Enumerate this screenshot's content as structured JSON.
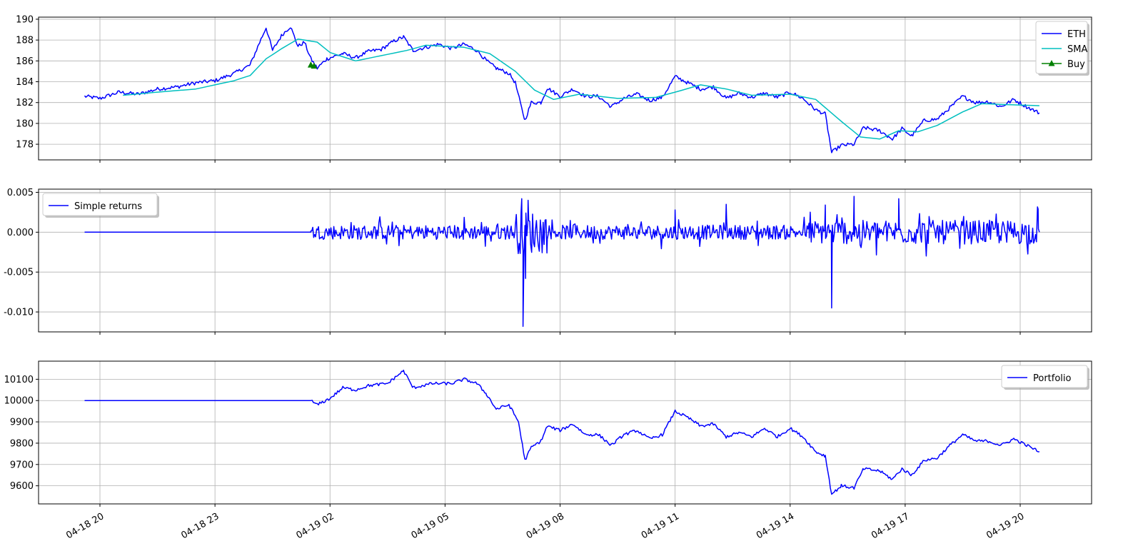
{
  "chart_data": {
    "x_ticks": [
      "04-18 20",
      "04-18 23",
      "04-19 02",
      "04-19 05",
      "04-19 08",
      "04-19 11",
      "04-19 14",
      "04-19 17",
      "04-19 20"
    ],
    "x_range": [
      "04-18 19:36",
      "04-19 20:30"
    ],
    "panels": [
      {
        "type": "line",
        "ylim": [
          176.5,
          190.2
        ],
        "y_ticks": [
          "178",
          "180",
          "182",
          "184",
          "186",
          "188",
          "190"
        ],
        "grid": true,
        "legend": {
          "placement": "top-right",
          "entries": [
            "ETH",
            "SMA",
            "Buy"
          ]
        },
        "series": [
          {
            "name": "ETH",
            "color": "#0000ff",
            "points": [
              [
                "04-18 19:36",
                182.6
              ],
              [
                "04-18 20:00",
                182.4
              ],
              [
                "04-18 20:30",
                183.0
              ],
              [
                "04-18 21:00",
                182.8
              ],
              [
                "04-18 21:30",
                183.3
              ],
              [
                "04-18 22:00",
                183.5
              ],
              [
                "04-18 22:30",
                183.9
              ],
              [
                "04-18 23:00",
                184.1
              ],
              [
                "04-18 23:30",
                184.8
              ],
              [
                "04-18 23:55",
                185.6
              ],
              [
                "04-19 00:10",
                187.8
              ],
              [
                "04-19 00:20",
                189.2
              ],
              [
                "04-19 00:30",
                187.0
              ],
              [
                "04-19 00:45",
                188.5
              ],
              [
                "04-19 00:58",
                189.3
              ],
              [
                "04-19 01:10",
                187.4
              ],
              [
                "04-19 01:20",
                187.8
              ],
              [
                "04-19 01:30",
                186.2
              ],
              [
                "04-19 01:40",
                185.3
              ],
              [
                "04-19 01:55",
                186.2
              ],
              [
                "04-19 02:20",
                186.7
              ],
              [
                "04-19 02:40",
                186.3
              ],
              [
                "04-19 03:00",
                186.9
              ],
              [
                "04-19 03:20",
                187.1
              ],
              [
                "04-19 03:40",
                187.9
              ],
              [
                "04-19 03:55",
                188.3
              ],
              [
                "04-19 04:10",
                187.0
              ],
              [
                "04-19 04:30",
                187.3
              ],
              [
                "04-19 04:50",
                187.6
              ],
              [
                "04-19 05:10",
                187.2
              ],
              [
                "04-19 05:30",
                187.6
              ],
              [
                "04-19 05:50",
                187.0
              ],
              [
                "04-19 06:05",
                186.0
              ],
              [
                "04-19 06:20",
                185.3
              ],
              [
                "04-19 06:40",
                184.8
              ],
              [
                "04-19 06:50",
                183.9
              ],
              [
                "04-19 07:00",
                181.4
              ],
              [
                "04-19 07:05",
                180.3
              ],
              [
                "04-19 07:15",
                182.0
              ],
              [
                "04-19 07:30",
                182.0
              ],
              [
                "04-19 07:40",
                183.4
              ],
              [
                "04-19 08:00",
                182.6
              ],
              [
                "04-19 08:20",
                183.3
              ],
              [
                "04-19 08:40",
                182.6
              ],
              [
                "04-19 09:00",
                182.6
              ],
              [
                "04-19 09:20",
                181.6
              ],
              [
                "04-19 09:40",
                182.4
              ],
              [
                "04-19 10:00",
                182.8
              ],
              [
                "04-19 10:20",
                182.2
              ],
              [
                "04-19 10:40",
                182.5
              ],
              [
                "04-19 11:00",
                184.5
              ],
              [
                "04-19 11:20",
                183.9
              ],
              [
                "04-19 11:40",
                183.3
              ],
              [
                "04-19 12:00",
                183.5
              ],
              [
                "04-19 12:20",
                182.4
              ],
              [
                "04-19 12:40",
                182.9
              ],
              [
                "04-19 13:00",
                182.5
              ],
              [
                "04-19 13:20",
                182.9
              ],
              [
                "04-19 13:40",
                182.5
              ],
              [
                "04-19 14:00",
                183.0
              ],
              [
                "04-19 14:20",
                182.4
              ],
              [
                "04-19 14:40",
                181.3
              ],
              [
                "04-19 14:55",
                180.9
              ],
              [
                "04-19 15:05",
                177.2
              ],
              [
                "04-19 15:20",
                177.9
              ],
              [
                "04-19 15:40",
                178.0
              ],
              [
                "04-19 15:55",
                179.6
              ],
              [
                "04-19 16:20",
                179.3
              ],
              [
                "04-19 16:40",
                178.5
              ],
              [
                "04-19 16:55",
                179.5
              ],
              [
                "04-19 17:10",
                178.8
              ],
              [
                "04-19 17:30",
                180.3
              ],
              [
                "04-19 17:50",
                180.4
              ],
              [
                "04-19 18:10",
                181.5
              ],
              [
                "04-19 18:30",
                182.6
              ],
              [
                "04-19 18:50",
                182.0
              ],
              [
                "04-19 19:10",
                182.1
              ],
              [
                "04-19 19:30",
                181.6
              ],
              [
                "04-19 19:50",
                182.3
              ],
              [
                "04-19 20:10",
                181.6
              ],
              [
                "04-19 20:30",
                181.0
              ]
            ]
          },
          {
            "name": "SMA",
            "color": "#00bfbf",
            "points": [
              [
                "04-18 20:36",
                182.7
              ],
              [
                "04-18 21:30",
                183.0
              ],
              [
                "04-18 22:30",
                183.3
              ],
              [
                "04-18 23:30",
                184.1
              ],
              [
                "04-18 23:55",
                184.6
              ],
              [
                "04-19 00:20",
                186.2
              ],
              [
                "04-19 00:45",
                187.2
              ],
              [
                "04-19 01:10",
                188.1
              ],
              [
                "04-19 01:40",
                187.8
              ],
              [
                "04-19 02:00",
                186.8
              ],
              [
                "04-19 02:40",
                186.0
              ],
              [
                "04-19 03:20",
                186.5
              ],
              [
                "04-19 04:00",
                187.0
              ],
              [
                "04-19 04:30",
                187.5
              ],
              [
                "04-19 05:30",
                187.3
              ],
              [
                "04-19 06:10",
                186.7
              ],
              [
                "04-19 06:50",
                185.0
              ],
              [
                "04-19 07:20",
                183.2
              ],
              [
                "04-19 07:50",
                182.3
              ],
              [
                "04-19 08:30",
                182.8
              ],
              [
                "04-19 09:30",
                182.4
              ],
              [
                "04-19 10:30",
                182.5
              ],
              [
                "04-19 11:00",
                183.0
              ],
              [
                "04-19 11:40",
                183.7
              ],
              [
                "04-19 12:20",
                183.3
              ],
              [
                "04-19 13:00",
                182.7
              ],
              [
                "04-19 14:00",
                182.8
              ],
              [
                "04-19 14:40",
                182.3
              ],
              [
                "04-19 15:20",
                180.2
              ],
              [
                "04-19 15:50",
                178.7
              ],
              [
                "04-19 16:20",
                178.5
              ],
              [
                "04-19 16:50",
                179.3
              ],
              [
                "04-19 17:20",
                179.2
              ],
              [
                "04-19 17:50",
                179.8
              ],
              [
                "04-19 18:30",
                181.1
              ],
              [
                "04-19 19:00",
                181.9
              ],
              [
                "04-19 19:40",
                181.8
              ],
              [
                "04-19 20:30",
                181.7
              ]
            ]
          }
        ],
        "markers": [
          {
            "name": "Buy",
            "color": "#008000",
            "shape": "triangle-up",
            "points": [
              [
                "04-19 01:30",
                185.6
              ],
              [
                "04-19 01:35",
                185.5
              ]
            ]
          }
        ]
      },
      {
        "type": "line",
        "ylim": [
          -0.0125,
          0.0054
        ],
        "y_ticks": [
          "-0.010",
          "-0.005",
          "0.000",
          "0.005"
        ],
        "grid": true,
        "legend": {
          "placement": "top-left",
          "entries": [
            "Simple returns"
          ]
        },
        "series": [
          {
            "name": "Simple returns",
            "color": "#0000ff",
            "flat_until": "04-19 01:30",
            "amplitude_windows": [
              [
                "04-19 01:30",
                "04-19 06:50",
                0.0015
              ],
              [
                "04-19 06:50",
                "04-19 07:40",
                0.0045
              ],
              [
                "04-19 07:40",
                "04-19 14:30",
                0.0015
              ],
              [
                "04-19 14:30",
                "04-19 20:30",
                0.0025
              ]
            ],
            "spikes": [
              [
                "04-19 07:02",
                -0.0118
              ],
              [
                "04-19 07:06",
                -0.0058
              ],
              [
                "04-19 07:00",
                0.0042
              ],
              [
                "04-19 07:10",
                0.004
              ],
              [
                "04-19 15:05",
                -0.0095
              ],
              [
                "04-19 15:40",
                0.0045
              ],
              [
                "04-19 16:50",
                0.0042
              ],
              [
                "04-19 14:55",
                0.0034
              ],
              [
                "04-19 11:00",
                0.0028
              ],
              [
                "04-19 12:20",
                0.0035
              ],
              [
                "04-19 20:28",
                0.0029
              ]
            ]
          }
        ]
      },
      {
        "type": "line",
        "ylim": [
          9515,
          10185
        ],
        "y_ticks": [
          "9600",
          "9700",
          "9800",
          "9900",
          "10000",
          "10100"
        ],
        "grid": true,
        "legend": {
          "placement": "top-right",
          "entries": [
            "Portfolio"
          ]
        },
        "series": [
          {
            "name": "Portfolio",
            "color": "#0000ff",
            "points": [
              [
                "04-18 19:36",
                10000
              ],
              [
                "04-19 01:30",
                10000
              ],
              [
                "04-19 01:40",
                9980
              ],
              [
                "04-19 02:00",
                10010
              ],
              [
                "04-19 02:20",
                10060
              ],
              [
                "04-19 02:40",
                10050
              ],
              [
                "04-19 03:00",
                10070
              ],
              [
                "04-19 03:30",
                10080
              ],
              [
                "04-19 03:55",
                10140
              ],
              [
                "04-19 04:10",
                10060
              ],
              [
                "04-19 04:40",
                10080
              ],
              [
                "04-19 05:10",
                10080
              ],
              [
                "04-19 05:30",
                10100
              ],
              [
                "04-19 05:50",
                10080
              ],
              [
                "04-19 06:05",
                10030
              ],
              [
                "04-19 06:20",
                9960
              ],
              [
                "04-19 06:40",
                9980
              ],
              [
                "04-19 06:55",
                9900
              ],
              [
                "04-19 07:05",
                9720
              ],
              [
                "04-19 07:15",
                9780
              ],
              [
                "04-19 07:30",
                9810
              ],
              [
                "04-19 07:40",
                9880
              ],
              [
                "04-19 08:00",
                9860
              ],
              [
                "04-19 08:20",
                9890
              ],
              [
                "04-19 08:40",
                9840
              ],
              [
                "04-19 09:00",
                9840
              ],
              [
                "04-19 09:20",
                9790
              ],
              [
                "04-19 09:40",
                9840
              ],
              [
                "04-19 10:00",
                9860
              ],
              [
                "04-19 10:20",
                9820
              ],
              [
                "04-19 10:40",
                9840
              ],
              [
                "04-19 11:00",
                9950
              ],
              [
                "04-19 11:20",
                9920
              ],
              [
                "04-19 11:40",
                9880
              ],
              [
                "04-19 12:00",
                9890
              ],
              [
                "04-19 12:20",
                9830
              ],
              [
                "04-19 12:40",
                9850
              ],
              [
                "04-19 13:00",
                9830
              ],
              [
                "04-19 13:20",
                9870
              ],
              [
                "04-19 13:40",
                9830
              ],
              [
                "04-19 14:00",
                9870
              ],
              [
                "04-19 14:20",
                9830
              ],
              [
                "04-19 14:40",
                9760
              ],
              [
                "04-19 14:55",
                9740
              ],
              [
                "04-19 15:05",
                9560
              ],
              [
                "04-19 15:20",
                9600
              ],
              [
                "04-19 15:40",
                9590
              ],
              [
                "04-19 15:55",
                9680
              ],
              [
                "04-19 16:20",
                9670
              ],
              [
                "04-19 16:40",
                9630
              ],
              [
                "04-19 16:55",
                9680
              ],
              [
                "04-19 17:10",
                9650
              ],
              [
                "04-19 17:30",
                9720
              ],
              [
                "04-19 17:50",
                9730
              ],
              [
                "04-19 18:10",
                9790
              ],
              [
                "04-19 18:30",
                9840
              ],
              [
                "04-19 18:50",
                9810
              ],
              [
                "04-19 19:10",
                9810
              ],
              [
                "04-19 19:30",
                9790
              ],
              [
                "04-19 19:50",
                9820
              ],
              [
                "04-19 20:10",
                9790
              ],
              [
                "04-19 20:30",
                9760
              ]
            ]
          }
        ]
      }
    ]
  }
}
